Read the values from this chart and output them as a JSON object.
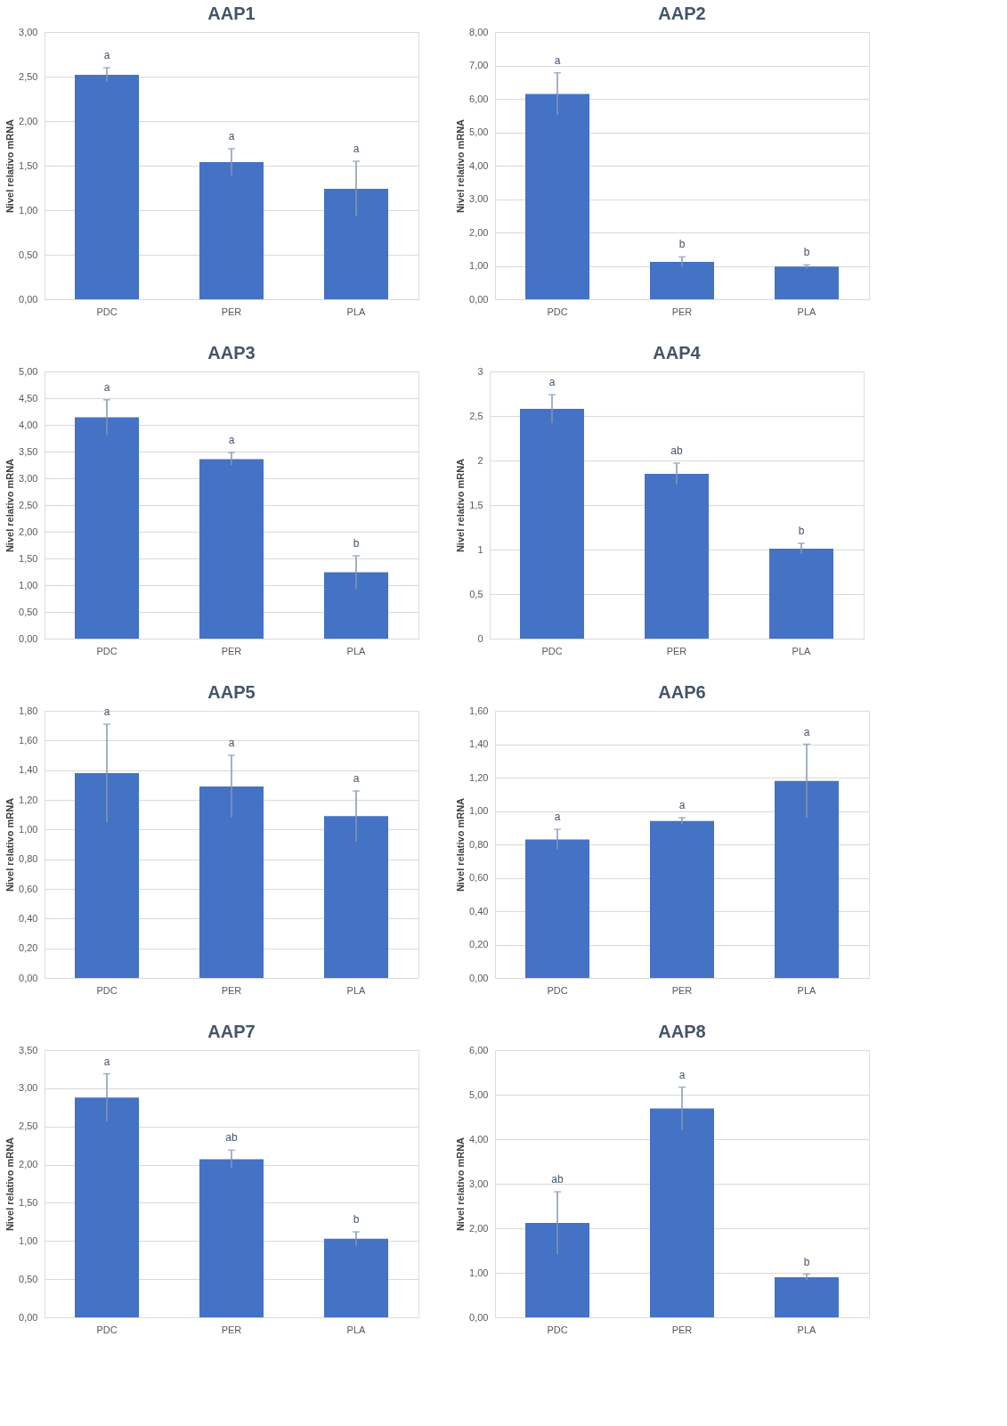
{
  "chart_data": [
    {
      "type": "bar",
      "title": "AAP1",
      "ylabel": "Nivel relativo mRNA",
      "categories": [
        "PDC",
        "PER",
        "PLA"
      ],
      "values": [
        2.52,
        1.54,
        1.24
      ],
      "errors": [
        0.08,
        0.15,
        0.31
      ],
      "color": "#4472c4",
      "ylim": [
        0,
        3
      ],
      "yticks": [
        {
          "value": 0,
          "label": "0,00"
        },
        {
          "value": 0.5,
          "label": "0,50"
        },
        {
          "value": 1,
          "label": "1,00"
        },
        {
          "value": 1.5,
          "label": "1,50"
        },
        {
          "value": 2,
          "label": "2,00"
        },
        {
          "value": 2.5,
          "label": "2,50"
        },
        {
          "value": 3,
          "label": "3,00"
        }
      ],
      "grid": "y",
      "annotations": [
        {
          "text": "a",
          "x": "PDC",
          "y": 2.6
        },
        {
          "text": "a",
          "x": "PER",
          "y": 1.69
        },
        {
          "text": "a",
          "x": "PLA",
          "y": 1.55
        }
      ]
    },
    {
      "type": "bar",
      "title": "AAP2",
      "ylabel": "Nivel relativo mRNA",
      "categories": [
        "PDC",
        "PER",
        "PLA"
      ],
      "values": [
        6.15,
        1.12,
        0.98
      ],
      "errors": [
        0.63,
        0.15,
        0.05
      ],
      "color": "#4472c4",
      "ylim": [
        0,
        8
      ],
      "yticks": [
        {
          "value": 0,
          "label": "0,00"
        },
        {
          "value": 1,
          "label": "1,00"
        },
        {
          "value": 2,
          "label": "2,00"
        },
        {
          "value": 3,
          "label": "3,00"
        },
        {
          "value": 4,
          "label": "4,00"
        },
        {
          "value": 5,
          "label": "5,00"
        },
        {
          "value": 6,
          "label": "6,00"
        },
        {
          "value": 7,
          "label": "7,00"
        },
        {
          "value": 8,
          "label": "8,00"
        }
      ],
      "grid": "y",
      "annotations": [
        {
          "text": "a",
          "x": "PDC",
          "y": 6.78
        },
        {
          "text": "b",
          "x": "PER",
          "y": 1.27
        },
        {
          "text": "b",
          "x": "PLA",
          "y": 1.03
        }
      ]
    },
    {
      "type": "bar",
      "title": "AAP3",
      "ylabel": "Nivel relativo mRNA",
      "categories": [
        "PDC",
        "PER",
        "PLA"
      ],
      "values": [
        4.14,
        3.36,
        1.24
      ],
      "errors": [
        0.33,
        0.12,
        0.31
      ],
      "color": "#4472c4",
      "ylim": [
        0,
        5
      ],
      "yticks": [
        {
          "value": 0,
          "label": "0,00"
        },
        {
          "value": 0.5,
          "label": "0,50"
        },
        {
          "value": 1,
          "label": "1,00"
        },
        {
          "value": 1.5,
          "label": "1,50"
        },
        {
          "value": 2,
          "label": "2,00"
        },
        {
          "value": 2.5,
          "label": "2,50"
        },
        {
          "value": 3,
          "label": "3,00"
        },
        {
          "value": 3.5,
          "label": "3,50"
        },
        {
          "value": 4,
          "label": "4,00"
        },
        {
          "value": 4.5,
          "label": "4,50"
        },
        {
          "value": 5,
          "label": "5,00"
        }
      ],
      "grid": "y",
      "annotations": [
        {
          "text": "a",
          "x": "PDC",
          "y": 4.47
        },
        {
          "text": "a",
          "x": "PER",
          "y": 3.48
        },
        {
          "text": "b",
          "x": "PLA",
          "y": 1.55
        }
      ]
    },
    {
      "type": "bar",
      "title": "AAP4",
      "ylabel": "Nivel relativo mRNA",
      "categories": [
        "PDC",
        "PER",
        "PLA"
      ],
      "values": [
        2.58,
        1.85,
        1.01
      ],
      "errors": [
        0.16,
        0.12,
        0.06
      ],
      "color": "#4472c4",
      "ylim": [
        0,
        3
      ],
      "yticks": [
        0,
        {
          "value": 0.5,
          "label": "0,5"
        },
        1,
        {
          "value": 1.5,
          "label": "1,5"
        },
        2,
        {
          "value": 2.5,
          "label": "2,5"
        },
        3
      ],
      "grid": "y",
      "annotations": [
        {
          "text": "a",
          "x": "PDC",
          "y": 2.74
        },
        {
          "text": "ab",
          "x": "PER",
          "y": 1.97
        },
        {
          "text": "b",
          "x": "PLA",
          "y": 1.07
        }
      ]
    },
    {
      "type": "bar",
      "title": "AAP5",
      "ylabel": "Nivel relativo mRNA",
      "categories": [
        "PDC",
        "PER",
        "PLA"
      ],
      "values": [
        1.38,
        1.29,
        1.09
      ],
      "errors": [
        0.33,
        0.21,
        0.17
      ],
      "color": "#4472c4",
      "ylim": [
        0,
        1.8
      ],
      "yticks": [
        {
          "value": 0,
          "label": "0,00"
        },
        {
          "value": 0.2,
          "label": "0,20"
        },
        {
          "value": 0.4,
          "label": "0,40"
        },
        {
          "value": 0.6,
          "label": "0,60"
        },
        {
          "value": 0.8,
          "label": "0,80"
        },
        {
          "value": 1,
          "label": "1,00"
        },
        {
          "value": 1.2,
          "label": "1,20"
        },
        {
          "value": 1.4,
          "label": "1,40"
        },
        {
          "value": 1.6,
          "label": "1,60"
        },
        {
          "value": 1.8,
          "label": "1,80"
        }
      ],
      "grid": "y",
      "annotations": [
        {
          "text": "a",
          "x": "PDC",
          "y": 1.71
        },
        {
          "text": "a",
          "x": "PER",
          "y": 1.5
        },
        {
          "text": "a",
          "x": "PLA",
          "y": 1.26
        }
      ]
    },
    {
      "type": "bar",
      "title": "AAP6",
      "ylabel": "Nivel relativo mRNA",
      "categories": [
        "PDC",
        "PER",
        "PLA"
      ],
      "values": [
        0.83,
        0.94,
        1.18
      ],
      "errors": [
        0.06,
        0.02,
        0.22
      ],
      "color": "#4472c4",
      "ylim": [
        0,
        1.6
      ],
      "yticks": [
        {
          "value": 0,
          "label": "0,00"
        },
        {
          "value": 0.2,
          "label": "0,20"
        },
        {
          "value": 0.4,
          "label": "0,40"
        },
        {
          "value": 0.6,
          "label": "0,60"
        },
        {
          "value": 0.8,
          "label": "0,80"
        },
        {
          "value": 1,
          "label": "1,00"
        },
        {
          "value": 1.2,
          "label": "1,20"
        },
        {
          "value": 1.4,
          "label": "1,40"
        },
        {
          "value": 1.6,
          "label": "1,60"
        }
      ],
      "grid": "y",
      "annotations": [
        {
          "text": "a",
          "x": "PDC",
          "y": 0.89
        },
        {
          "text": "a",
          "x": "PER",
          "y": 0.96
        },
        {
          "text": "a",
          "x": "PLA",
          "y": 1.4
        }
      ]
    },
    {
      "type": "bar",
      "title": "AAP7",
      "ylabel": "Nivel relativo mRNA",
      "categories": [
        "PDC",
        "PER",
        "PLA"
      ],
      "values": [
        2.88,
        2.07,
        1.03
      ],
      "errors": [
        0.31,
        0.12,
        0.09
      ],
      "color": "#4472c4",
      "ylim": [
        0,
        3.5
      ],
      "yticks": [
        {
          "value": 0,
          "label": "0,00"
        },
        {
          "value": 0.5,
          "label": "0,50"
        },
        {
          "value": 1,
          "label": "1,00"
        },
        {
          "value": 1.5,
          "label": "1,50"
        },
        {
          "value": 2,
          "label": "2,00"
        },
        {
          "value": 2.5,
          "label": "2,50"
        },
        {
          "value": 3,
          "label": "3,00"
        },
        {
          "value": 3.5,
          "label": "3,50"
        }
      ],
      "grid": "y",
      "annotations": [
        {
          "text": "a",
          "x": "PDC",
          "y": 3.19
        },
        {
          "text": "ab",
          "x": "PER",
          "y": 2.19
        },
        {
          "text": "b",
          "x": "PLA",
          "y": 1.12
        }
      ]
    },
    {
      "type": "bar",
      "title": "AAP8",
      "ylabel": "Nivel relativo mRNA",
      "categories": [
        "PDC",
        "PER",
        "PLA"
      ],
      "values": [
        2.12,
        4.69,
        0.9
      ],
      "errors": [
        0.7,
        0.48,
        0.07
      ],
      "color": "#4472c4",
      "ylim": [
        0,
        6
      ],
      "yticks": [
        {
          "value": 0,
          "label": "0,00"
        },
        {
          "value": 1,
          "label": "1,00"
        },
        {
          "value": 2,
          "label": "2,00"
        },
        {
          "value": 3,
          "label": "3,00"
        },
        {
          "value": 4,
          "label": "4,00"
        },
        {
          "value": 5,
          "label": "5,00"
        },
        {
          "value": 6,
          "label": "6,00"
        }
      ],
      "grid": "y",
      "annotations": [
        {
          "text": "ab",
          "x": "PDC",
          "y": 2.82
        },
        {
          "text": "a",
          "x": "PER",
          "y": 5.17
        },
        {
          "text": "b",
          "x": "PLA",
          "y": 0.97
        }
      ]
    }
  ]
}
